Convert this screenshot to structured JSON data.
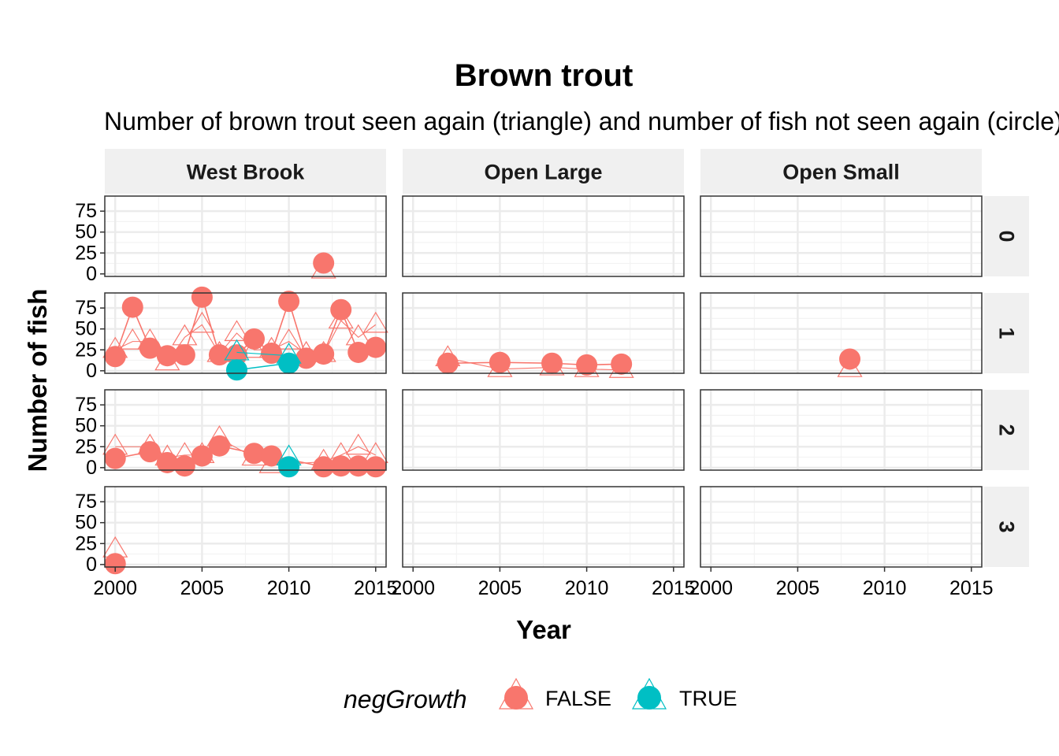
{
  "chart_data": {
    "type": "line",
    "title": "Brown trout",
    "subtitle": "Number of brown trout seen again (triangle) and number of fish not seen again (circle)",
    "xlabel": "Year",
    "ylabel": "Number of fish",
    "xlim": [
      1999.4,
      2015.6
    ],
    "ylim": [
      -3,
      93
    ],
    "x_ticks": [
      2000,
      2005,
      2010,
      2015
    ],
    "y_ticks": [
      0,
      25,
      50,
      75
    ],
    "x_tick_labels": [
      "2000",
      "2005",
      "2010",
      "2015"
    ],
    "y_tick_labels": [
      "0",
      "25",
      "50",
      "75"
    ],
    "grid": true,
    "columns": [
      "West Brook",
      "Open Large",
      "Open Small"
    ],
    "rows": [
      "0",
      "1",
      "2",
      "3"
    ],
    "legend": {
      "title": "negGrowth",
      "position": "bottom",
      "entries": [
        {
          "label": "FALSE",
          "color": "#F8766D"
        },
        {
          "label": "TRUE",
          "color": "#00BFC4"
        }
      ]
    },
    "panels": [
      {
        "column": "West Brook",
        "row": "0",
        "series": [
          {
            "group": "FALSE",
            "color": "#F8766D",
            "circles": [
              [
                2012,
                13
              ]
            ],
            "triangles": [
              [
                2012,
                4
              ]
            ]
          }
        ]
      },
      {
        "column": "West Brook",
        "row": "1",
        "series": [
          {
            "group": "FALSE",
            "color": "#F8766D",
            "circles": [
              [
                2000,
                17
              ],
              [
                2001,
                76
              ],
              [
                2002,
                27
              ],
              [
                2003,
                18
              ],
              [
                2004,
                19
              ],
              [
                2005,
                88
              ],
              [
                2006,
                19
              ],
              [
                2007,
                19
              ],
              [
                2008,
                38
              ],
              [
                2009,
                21
              ],
              [
                2010,
                83
              ],
              [
                2011,
                15
              ],
              [
                2012,
                20
              ],
              [
                2013,
                73
              ],
              [
                2014,
                22
              ],
              [
                2015,
                28
              ]
            ],
            "triangles": [
              [
                2000,
                25
              ],
              [
                2001,
                35
              ],
              [
                2002,
                35
              ],
              [
                2003,
                10
              ],
              [
                2004,
                40
              ],
              [
                2005,
                55
              ],
              [
                2006,
                20
              ],
              [
                2007,
                45
              ],
              [
                2008,
                25
              ],
              [
                2009,
                25
              ],
              [
                2010,
                35
              ],
              [
                2011,
                20
              ],
              [
                2012,
                20
              ],
              [
                2013,
                60
              ],
              [
                2014,
                40
              ],
              [
                2015,
                55
              ]
            ]
          },
          {
            "group": "TRUE",
            "color": "#00BFC4",
            "circles": [
              [
                2007,
                1
              ],
              [
                2010,
                9
              ]
            ],
            "triangles": [
              [
                2007,
                22
              ],
              [
                2010,
                18
              ]
            ]
          }
        ]
      },
      {
        "column": "Open Large",
        "row": "1",
        "series": [
          {
            "group": "FALSE",
            "color": "#F8766D",
            "circles": [
              [
                2002,
                9
              ],
              [
                2005,
                10
              ],
              [
                2008,
                9
              ],
              [
                2010,
                7
              ],
              [
                2012,
                8
              ]
            ],
            "triangles": [
              [
                2002,
                15
              ],
              [
                2005,
                2
              ],
              [
                2008,
                4
              ],
              [
                2010,
                2
              ],
              [
                2012,
                1
              ]
            ]
          }
        ]
      },
      {
        "column": "Open Small",
        "row": "1",
        "series": [
          {
            "group": "FALSE",
            "color": "#F8766D",
            "circles": [
              [
                2008,
                14
              ]
            ],
            "triangles": [
              [
                2008,
                2
              ]
            ]
          }
        ]
      },
      {
        "column": "West Brook",
        "row": "2",
        "series": [
          {
            "group": "FALSE",
            "color": "#F8766D",
            "circles": [
              [
                2000,
                11
              ],
              [
                2002,
                19
              ],
              [
                2003,
                6
              ],
              [
                2004,
                2
              ],
              [
                2005,
                14
              ],
              [
                2006,
                26
              ],
              [
                2008,
                17
              ],
              [
                2009,
                14
              ],
              [
                2012,
                1
              ],
              [
                2013,
                2
              ],
              [
                2014,
                2
              ],
              [
                2015,
                1
              ]
            ],
            "triangles": [
              [
                2000,
                25
              ],
              [
                2002,
                25
              ],
              [
                2003,
                12
              ],
              [
                2004,
                15
              ],
              [
                2005,
                15
              ],
              [
                2006,
                35
              ],
              [
                2008,
                12
              ],
              [
                2009,
                3
              ],
              [
                2012,
                7
              ],
              [
                2013,
                15
              ],
              [
                2014,
                25
              ],
              [
                2015,
                15
              ]
            ]
          },
          {
            "group": "TRUE",
            "color": "#00BFC4",
            "circles": [
              [
                2010,
                1
              ]
            ],
            "triangles": [
              [
                2010,
                12
              ]
            ]
          }
        ]
      },
      {
        "column": "West Brook",
        "row": "3",
        "series": [
          {
            "group": "FALSE",
            "color": "#F8766D",
            "circles": [
              [
                2000,
                1
              ]
            ],
            "triangles": [
              [
                2000,
                18
              ]
            ]
          }
        ]
      }
    ]
  }
}
